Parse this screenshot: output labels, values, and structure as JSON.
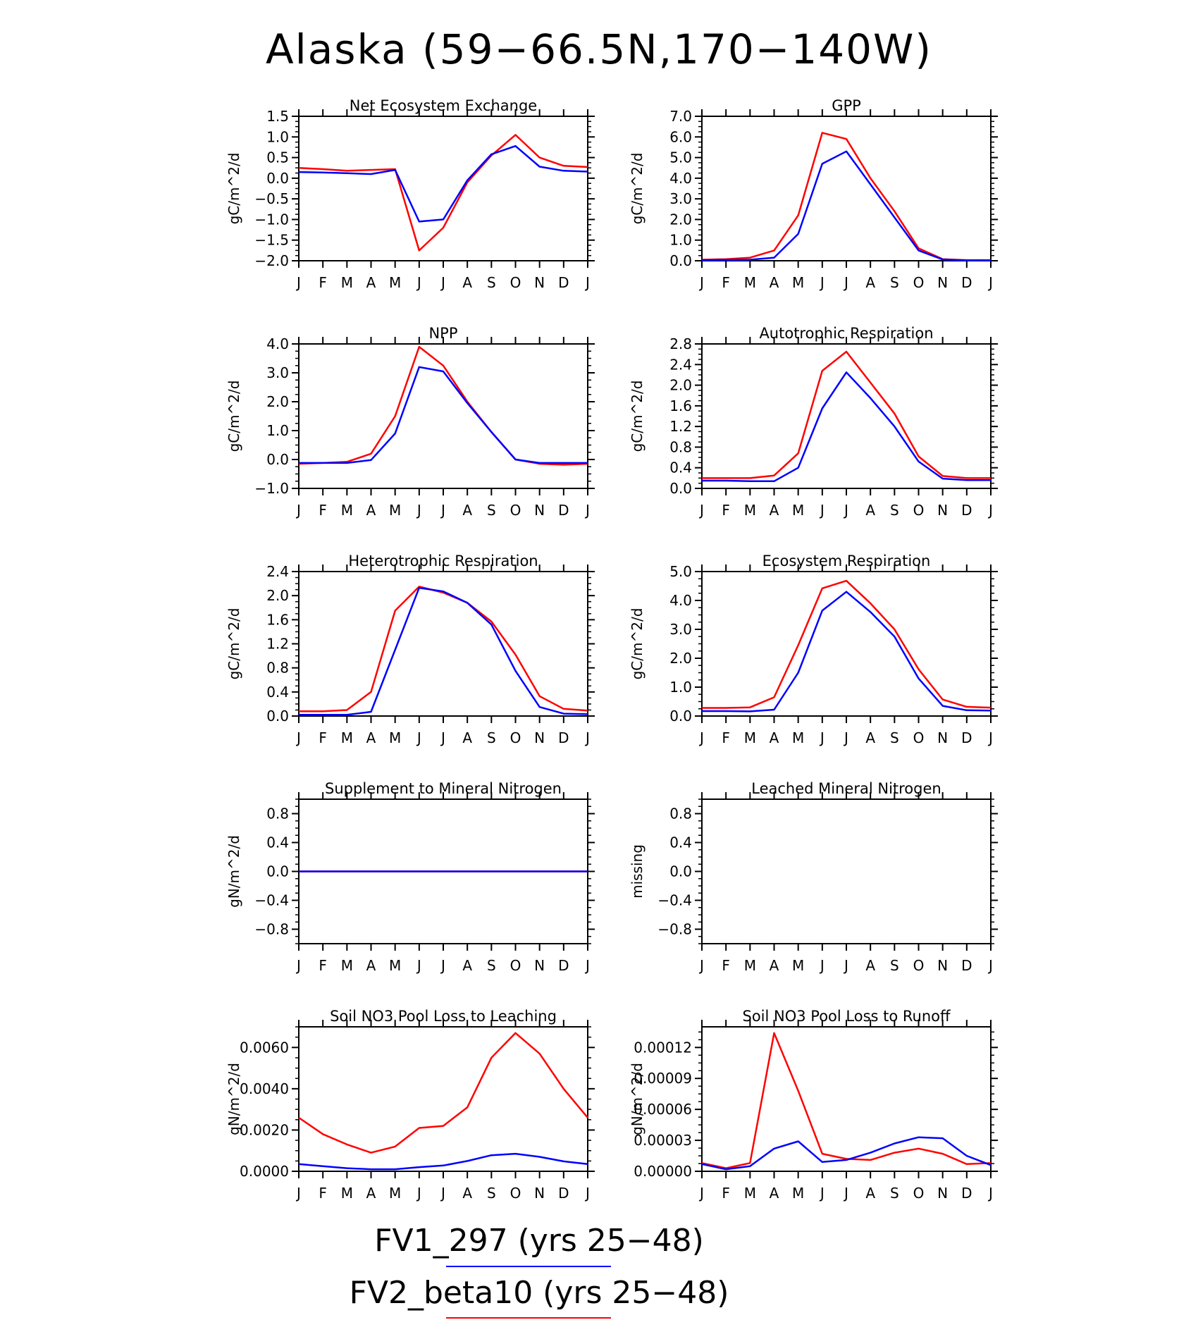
{
  "page_title": "Alaska (59−66.5N,170−140W)",
  "months": [
    "J",
    "F",
    "M",
    "A",
    "M",
    "J",
    "J",
    "A",
    "S",
    "O",
    "N",
    "D",
    "J"
  ],
  "colors": {
    "series_1": "#0000ff",
    "series_2": "#ff0000"
  },
  "legend": {
    "entries": [
      {
        "label": "FV1_297 (yrs 25−48)",
        "color": "#0000ff"
      },
      {
        "label": "FV2_beta10 (yrs 25−48)",
        "color": "#ff0000"
      }
    ]
  },
  "chart_data": [
    {
      "type": "line",
      "title": "Net Ecosystem Exchange",
      "ylabel": "gC/m^2/d",
      "ylim": [
        -2.0,
        1.5
      ],
      "yticks": [
        -2.0,
        -1.5,
        -1.0,
        -0.5,
        0.0,
        0.5,
        1.0,
        1.5
      ],
      "ytick_labels": [
        "−2.0",
        "−1.5",
        "−1.0",
        "−0.5",
        "0.0",
        "0.5",
        "1.0",
        "1.5"
      ],
      "series": [
        {
          "color": "#ff0000",
          "values": [
            0.25,
            0.22,
            0.18,
            0.2,
            0.22,
            -1.75,
            -1.2,
            -0.1,
            0.55,
            1.05,
            0.5,
            0.3,
            0.27
          ]
        },
        {
          "color": "#0000ff",
          "values": [
            0.15,
            0.14,
            0.12,
            0.1,
            0.2,
            -1.05,
            -1.0,
            -0.05,
            0.58,
            0.78,
            0.28,
            0.18,
            0.16
          ]
        }
      ]
    },
    {
      "type": "line",
      "title": "GPP",
      "ylabel": "gC/m^2/d",
      "ylim": [
        0.0,
        7.0
      ],
      "yticks": [
        0,
        1,
        2,
        3,
        4,
        5,
        6,
        7
      ],
      "ytick_labels": [
        "0.0",
        "1.0",
        "2.0",
        "3.0",
        "4.0",
        "5.0",
        "6.0",
        "7.0"
      ],
      "series": [
        {
          "color": "#ff0000",
          "values": [
            0.05,
            0.08,
            0.15,
            0.5,
            2.2,
            6.2,
            5.9,
            4.0,
            2.4,
            0.6,
            0.08,
            0.03,
            0.03
          ]
        },
        {
          "color": "#0000ff",
          "values": [
            0.03,
            0.04,
            0.05,
            0.15,
            1.3,
            4.7,
            5.3,
            3.7,
            2.1,
            0.5,
            0.06,
            0.02,
            0.02
          ]
        }
      ]
    },
    {
      "type": "line",
      "title": "NPP",
      "ylabel": "gC/m^2/d",
      "ylim": [
        -1.0,
        4.0
      ],
      "yticks": [
        -1,
        0,
        1,
        2,
        3,
        4
      ],
      "ytick_labels": [
        "−1.0",
        "0.0",
        "1.0",
        "2.0",
        "3.0",
        "4.0"
      ],
      "series": [
        {
          "color": "#ff0000",
          "values": [
            -0.15,
            -0.12,
            -0.08,
            0.2,
            1.5,
            3.9,
            3.25,
            2.0,
            0.95,
            0.0,
            -0.15,
            -0.18,
            -0.15
          ]
        },
        {
          "color": "#0000ff",
          "values": [
            -0.12,
            -0.12,
            -0.12,
            -0.02,
            0.9,
            3.2,
            3.05,
            1.95,
            0.95,
            0.0,
            -0.12,
            -0.12,
            -0.12
          ]
        }
      ]
    },
    {
      "type": "line",
      "title": "Autotrophic Respiration",
      "ylabel": "gC/m^2/d",
      "ylim": [
        0.0,
        2.8
      ],
      "yticks": [
        0,
        0.4,
        0.8,
        1.2,
        1.6,
        2.0,
        2.4,
        2.8
      ],
      "ytick_labels": [
        "0.0",
        "0.4",
        "0.8",
        "1.2",
        "1.6",
        "2.0",
        "2.4",
        "2.8"
      ],
      "series": [
        {
          "color": "#ff0000",
          "values": [
            0.2,
            0.2,
            0.2,
            0.25,
            0.68,
            2.28,
            2.65,
            2.05,
            1.45,
            0.62,
            0.24,
            0.2,
            0.2
          ]
        },
        {
          "color": "#0000ff",
          "values": [
            0.15,
            0.15,
            0.14,
            0.14,
            0.4,
            1.55,
            2.25,
            1.75,
            1.2,
            0.52,
            0.19,
            0.16,
            0.16
          ]
        }
      ]
    },
    {
      "type": "line",
      "title": "Heterotrophic Respiration",
      "ylabel": "gC/m^2/d",
      "ylim": [
        0.0,
        2.4
      ],
      "yticks": [
        0,
        0.4,
        0.8,
        1.2,
        1.6,
        2.0,
        2.4
      ],
      "ytick_labels": [
        "0.0",
        "0.4",
        "0.8",
        "1.2",
        "1.6",
        "2.0",
        "2.4"
      ],
      "series": [
        {
          "color": "#ff0000",
          "values": [
            0.08,
            0.08,
            0.1,
            0.4,
            1.75,
            2.15,
            2.05,
            1.88,
            1.57,
            1.02,
            0.33,
            0.12,
            0.09
          ]
        },
        {
          "color": "#0000ff",
          "values": [
            0.02,
            0.02,
            0.02,
            0.07,
            1.1,
            2.13,
            2.07,
            1.88,
            1.52,
            0.75,
            0.15,
            0.04,
            0.03
          ]
        }
      ]
    },
    {
      "type": "line",
      "title": "Ecosystem Respiration",
      "ylabel": "gC/m^2/d",
      "ylim": [
        0.0,
        5.0
      ],
      "yticks": [
        0,
        1,
        2,
        3,
        4,
        5
      ],
      "ytick_labels": [
        "0.0",
        "1.0",
        "2.0",
        "3.0",
        "4.0",
        "5.0"
      ],
      "series": [
        {
          "color": "#ff0000",
          "values": [
            0.28,
            0.28,
            0.3,
            0.65,
            2.45,
            4.42,
            4.68,
            3.9,
            3.0,
            1.62,
            0.57,
            0.32,
            0.29
          ]
        },
        {
          "color": "#0000ff",
          "values": [
            0.17,
            0.17,
            0.16,
            0.22,
            1.5,
            3.65,
            4.3,
            3.6,
            2.75,
            1.3,
            0.35,
            0.2,
            0.19
          ]
        }
      ]
    },
    {
      "type": "line",
      "title": "Supplement to Mineral Nitrogen",
      "ylabel": "gN/m^2/d",
      "ylim": [
        -1.0,
        1.0
      ],
      "yticks": [
        -0.8,
        -0.4,
        0.0,
        0.4,
        0.8
      ],
      "ytick_labels": [
        "−0.8",
        "−0.4",
        "0.0",
        "0.4",
        "0.8"
      ],
      "series": [
        {
          "color": "#ff0000",
          "values": [
            0,
            0,
            0,
            0,
            0,
            0,
            0,
            0,
            0,
            0,
            0,
            0,
            0
          ]
        },
        {
          "color": "#0000ff",
          "values": [
            0,
            0,
            0,
            0,
            0,
            0,
            0,
            0,
            0,
            0,
            0,
            0,
            0
          ]
        }
      ]
    },
    {
      "type": "line",
      "title": "Leached Mineral Nitrogen",
      "ylabel": "missing",
      "ylim": [
        -1.0,
        1.0
      ],
      "yticks": [
        -0.8,
        -0.4,
        0.0,
        0.4,
        0.8
      ],
      "ytick_labels": [
        "−0.8",
        "−0.4",
        "0.0",
        "0.4",
        "0.8"
      ],
      "series": []
    },
    {
      "type": "line",
      "title": "Soil NO3 Pool Loss to Leaching",
      "ylabel": "gN/m^2/d",
      "ylim": [
        0.0,
        0.007
      ],
      "yticks": [
        0,
        0.002,
        0.004,
        0.006
      ],
      "ytick_labels": [
        "0.0000",
        "0.0020",
        "0.0040",
        "0.0060"
      ],
      "series": [
        {
          "color": "#ff0000",
          "values": [
            0.0026,
            0.0018,
            0.0013,
            0.0009,
            0.0012,
            0.0021,
            0.0022,
            0.0031,
            0.0055,
            0.0067,
            0.0057,
            0.004,
            0.0026
          ]
        },
        {
          "color": "#0000ff",
          "values": [
            0.00035,
            0.00025,
            0.00015,
            0.0001,
            0.0001,
            0.0002,
            0.00028,
            0.0005,
            0.00078,
            0.00085,
            0.0007,
            0.00048,
            0.00035
          ]
        }
      ]
    },
    {
      "type": "line",
      "title": "Soil NO3 Pool Loss to Runoff",
      "ylabel": "gN/m^2/d",
      "ylim": [
        0.0,
        0.00014
      ],
      "yticks": [
        0,
        3e-05,
        6e-05,
        9e-05,
        0.00012
      ],
      "ytick_labels": [
        "0.00000",
        "0.00003",
        "0.00006",
        "0.00009",
        "0.00012"
      ],
      "series": [
        {
          "color": "#ff0000",
          "values": [
            8e-06,
            3e-06,
            8e-06,
            0.000134,
            7.8e-05,
            1.7e-05,
            1.2e-05,
            1.1e-05,
            1.8e-05,
            2.2e-05,
            1.7e-05,
            7e-06,
            8e-06
          ]
        },
        {
          "color": "#0000ff",
          "values": [
            7e-06,
            2e-06,
            5e-06,
            2.2e-05,
            2.9e-05,
            9e-06,
            1.1e-05,
            1.8e-05,
            2.7e-05,
            3.3e-05,
            3.2e-05,
            1.5e-05,
            6e-06
          ]
        }
      ]
    }
  ]
}
